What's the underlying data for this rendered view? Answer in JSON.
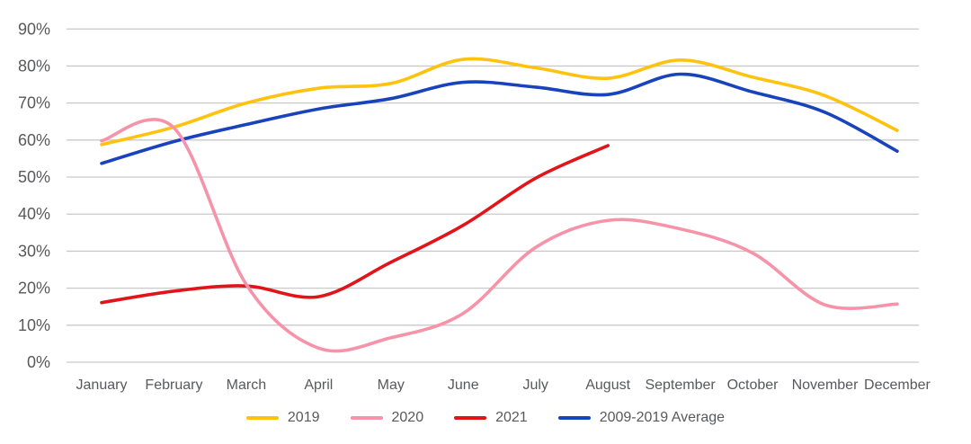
{
  "chart_data": {
    "type": "line",
    "title": "",
    "categories": [
      "January",
      "February",
      "March",
      "April",
      "May",
      "June",
      "July",
      "August",
      "September",
      "October",
      "November",
      "December"
    ],
    "x": [
      1,
      2,
      3,
      4,
      5,
      6,
      7,
      8,
      9,
      10,
      11,
      12
    ],
    "y_axis": {
      "min": 0,
      "max": 90,
      "step": 10,
      "tick_labels": [
        "0%",
        "10%",
        "20%",
        "30%",
        "40%",
        "50%",
        "60%",
        "70%",
        "80%",
        "90%"
      ],
      "unit": "percent",
      "grid": true
    },
    "legend_position": "bottom",
    "smoothing": "spline",
    "series": [
      {
        "name": "2019",
        "color": "#FFC20E",
        "values": [
          58.8,
          63.5,
          70.0,
          74.0,
          75.3,
          81.8,
          79.5,
          76.7,
          81.6,
          77.0,
          72.0,
          62.6
        ]
      },
      {
        "name": "2020",
        "color": "#F693A9",
        "values": [
          59.8,
          63.3,
          21.0,
          3.8,
          6.6,
          13.2,
          31.0,
          38.3,
          36.0,
          29.5,
          15.5,
          15.7
        ]
      },
      {
        "name": "2021",
        "color": "#E1141A",
        "values": [
          16.1,
          19.2,
          20.6,
          17.7,
          27.0,
          37.0,
          49.7,
          58.5,
          null,
          null,
          null,
          null
        ]
      },
      {
        "name": "2009-2019 Average",
        "color": "#1843BC",
        "values": [
          53.7,
          59.6,
          64.2,
          68.4,
          71.2,
          75.6,
          74.3,
          72.3,
          77.8,
          73.0,
          67.5,
          57.0
        ]
      }
    ],
    "colors": {
      "grid": "#c9c9c9",
      "axis_text": "#58595b",
      "background": "#ffffff"
    }
  }
}
